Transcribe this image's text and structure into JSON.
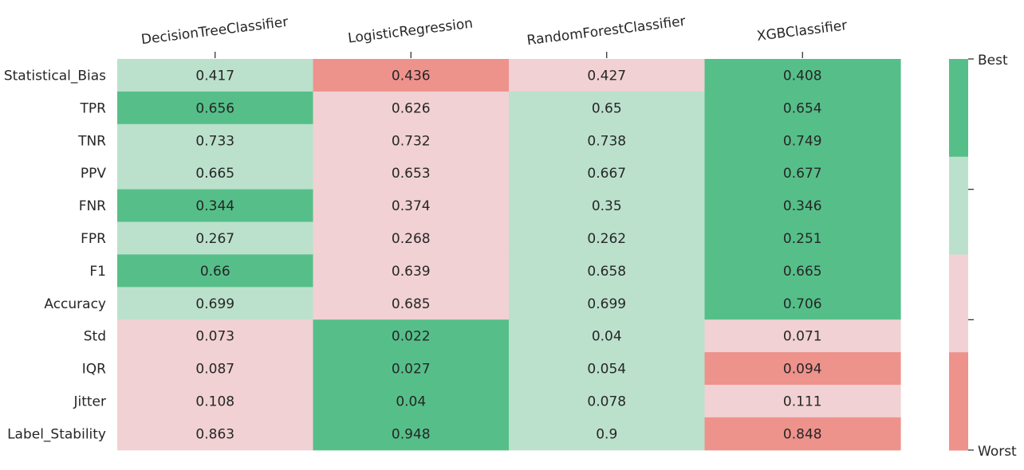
{
  "chart_data": {
    "type": "heatmap",
    "columns": [
      "DecisionTreeClassifier",
      "LogisticRegression",
      "RandomForestClassifier",
      "XGBClassifier"
    ],
    "rows": [
      "Statistical_Bias",
      "TPR",
      "TNR",
      "PPV",
      "FNR",
      "FPR",
      "F1",
      "Accuracy",
      "Std",
      "IQR",
      "Jitter",
      "Label_Stability"
    ],
    "values": [
      [
        "0.417",
        "0.436",
        "0.427",
        "0.408"
      ],
      [
        "0.656",
        "0.626",
        "0.65",
        "0.654"
      ],
      [
        "0.733",
        "0.732",
        "0.738",
        "0.749"
      ],
      [
        "0.665",
        "0.653",
        "0.667",
        "0.677"
      ],
      [
        "0.344",
        "0.374",
        "0.35",
        "0.346"
      ],
      [
        "0.267",
        "0.268",
        "0.262",
        "0.251"
      ],
      [
        "0.66",
        "0.639",
        "0.658",
        "0.665"
      ],
      [
        "0.699",
        "0.685",
        "0.699",
        "0.706"
      ],
      [
        "0.073",
        "0.022",
        "0.04",
        "0.071"
      ],
      [
        "0.087",
        "0.027",
        "0.054",
        "0.094"
      ],
      [
        "0.108",
        "0.04",
        "0.078",
        "0.111"
      ],
      [
        "0.863",
        "0.948",
        "0.9",
        "0.848"
      ]
    ],
    "rank_levels": [
      [
        3,
        1,
        2,
        4
      ],
      [
        4,
        2,
        3,
        4
      ],
      [
        3,
        2,
        3,
        4
      ],
      [
        3,
        2,
        3,
        4
      ],
      [
        4,
        2,
        3,
        4
      ],
      [
        3,
        2,
        3,
        4
      ],
      [
        4,
        2,
        3,
        4
      ],
      [
        3,
        2,
        3,
        4
      ],
      [
        2,
        4,
        3,
        2
      ],
      [
        2,
        4,
        3,
        1
      ],
      [
        2,
        4,
        3,
        2
      ],
      [
        2,
        4,
        3,
        1
      ]
    ],
    "colorbar": {
      "levels": 4,
      "colors": [
        "#ee928c",
        "#f1d1d3",
        "#bbe1cd",
        "#56bf89"
      ],
      "top_label": "Best",
      "bottom_label": "Worst"
    },
    "text_color": "#262626",
    "grid": false
  }
}
